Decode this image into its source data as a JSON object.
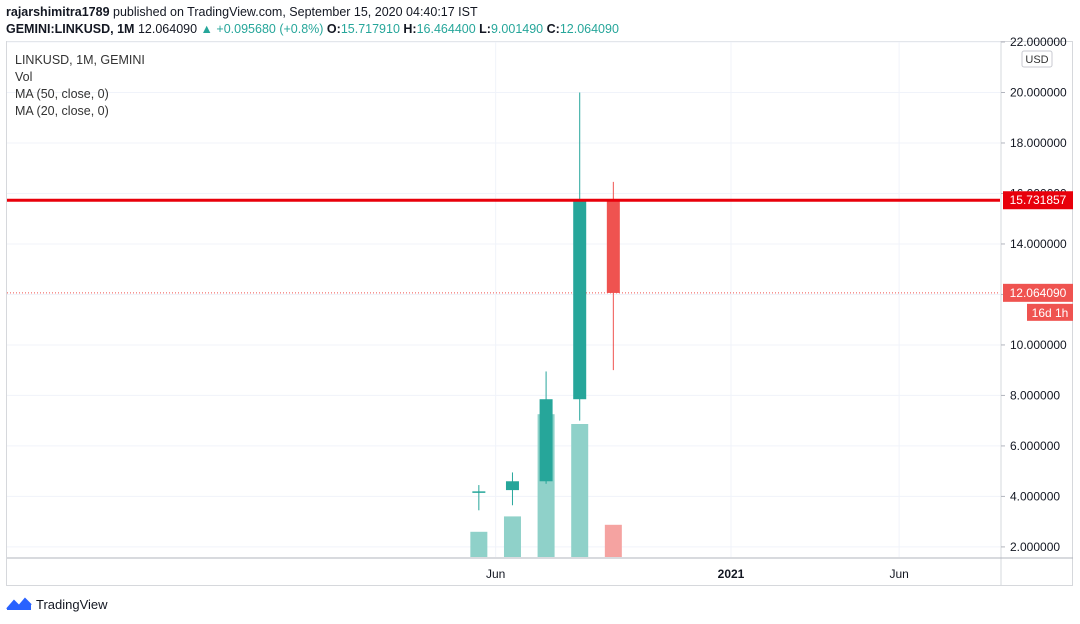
{
  "header": {
    "author": "rajarshimitra1789",
    "published": " published on TradingView.com, September 15, 2020 04:40:17 IST"
  },
  "ohlc": {
    "symbol": "GEMINI:LINKUSD, 1M",
    "price": "12.064090",
    "change_arrow": "▲",
    "change": "+0.095680 (+0.8%)",
    "o_label": "O:",
    "o": "15.717910",
    "h_label": "H:",
    "h": "16.464400",
    "l_label": "L:",
    "l": "9.001490",
    "c_label": "C:",
    "c": "12.064090"
  },
  "legend": {
    "title": "LINKUSD, 1M, GEMINI",
    "vol": "Vol",
    "ma50": "MA (50, close, 0)",
    "ma20": "MA (20, close, 0)"
  },
  "currency_button": "USD",
  "price_labels": {
    "line_value": "15.731857",
    "current_value": "12.064090",
    "countdown": "16d 1h"
  },
  "footer": {
    "brand": "TradingView"
  },
  "colors": {
    "up": "#26a69a",
    "down": "#ef5350",
    "vol_up": "#8fd1c9",
    "vol_down": "#f5a3a1",
    "hline": "#e8000b"
  },
  "chart_data": {
    "type": "candlestick",
    "title": "LINKUSD, 1M, GEMINI",
    "y_ticks": [
      "2.000000",
      "4.000000",
      "6.000000",
      "8.000000",
      "10.000000",
      "12.000000",
      "14.000000",
      "16.000000",
      "18.000000",
      "20.000000",
      "22.000000"
    ],
    "ylim": [
      1.6,
      22.0
    ],
    "x_ticks": [
      {
        "label": "Jun",
        "date": "2020-06"
      },
      {
        "label": "2021",
        "date": "2021-01"
      },
      {
        "label": "Jun",
        "date": "2021-06"
      }
    ],
    "xlim": [
      "2019-03-15",
      "2021-09"
    ],
    "candles": [
      {
        "date": "2020-05",
        "open": 4.15,
        "high": 4.45,
        "low": 3.45,
        "close": 4.2
      },
      {
        "date": "2020-06",
        "open": 4.25,
        "high": 4.95,
        "low": 3.65,
        "close": 4.6
      },
      {
        "date": "2020-07",
        "open": 4.6,
        "high": 8.95,
        "low": 4.5,
        "close": 7.85
      },
      {
        "date": "2020-08",
        "open": 7.85,
        "high": 20.0,
        "low": 7.0,
        "close": 15.72
      },
      {
        "date": "2020-09",
        "open": 15.72,
        "high": 16.46,
        "low": 9.0,
        "close": 12.06
      }
    ],
    "volume": [
      {
        "date": "2020-05",
        "value": 0.9,
        "dir": "up"
      },
      {
        "date": "2020-06",
        "value": 1.45,
        "dir": "up"
      },
      {
        "date": "2020-07",
        "value": 5.1,
        "dir": "up"
      },
      {
        "date": "2020-08",
        "value": 4.75,
        "dir": "up"
      },
      {
        "date": "2020-09",
        "value": 1.15,
        "dir": "down"
      }
    ],
    "horizontal_line": 15.731857,
    "current_price": 12.06409,
    "grid": true
  }
}
